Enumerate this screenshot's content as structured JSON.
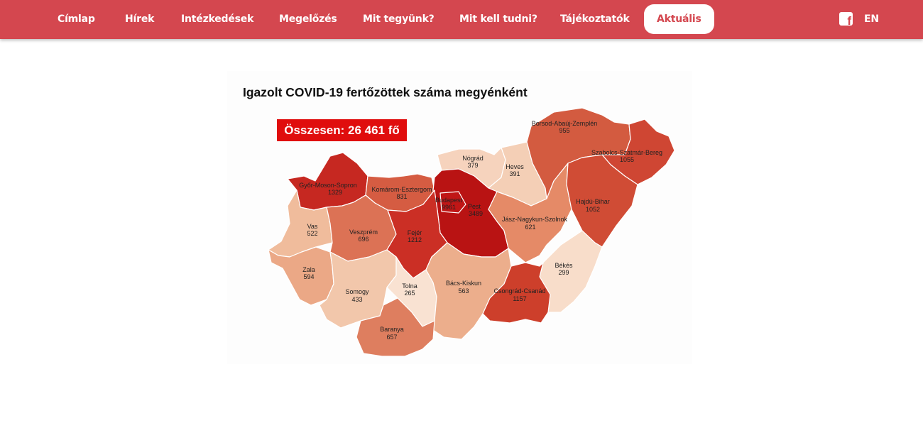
{
  "nav": {
    "items": [
      {
        "label": "Címlap"
      },
      {
        "label": "Hírek"
      },
      {
        "label": "Intézkedések"
      },
      {
        "label": "Megelőzés"
      },
      {
        "label": "Mit tegyünk?"
      },
      {
        "label": "Mit kell tudni?"
      },
      {
        "label": "Tájékoztatók"
      },
      {
        "label": "Aktuális",
        "active": true
      }
    ],
    "facebook_icon": "facebook-icon",
    "lang": "EN",
    "bar_color": "#d4474f"
  },
  "map": {
    "title": "Igazolt COVID-19 fertőzöttek száma megyénként",
    "total": "Összesen: 26 461 fő",
    "counties": [
      {
        "name": "Győr-Moson-Sopron",
        "value": "1329",
        "color": "#c62821"
      },
      {
        "name": "Komárom-Esztergom",
        "value": "831",
        "color": "#d55c42"
      },
      {
        "name": "Nógrád",
        "value": "379",
        "color": "#f6d3bd"
      },
      {
        "name": "Heves",
        "value": "391",
        "color": "#f4cfb6"
      },
      {
        "name": "Borsod-Abaúj-Zemplén",
        "value": "955",
        "color": "#d35b40"
      },
      {
        "name": "Szabolcs-Szatmár-Bereg",
        "value": "1055",
        "color": "#cf4633"
      },
      {
        "name": "Budapest",
        "value": "9961",
        "color": "#b91313"
      },
      {
        "name": "Pest",
        "value": "3489",
        "color": "#c01616"
      },
      {
        "name": "Vas",
        "value": "522",
        "color": "#f0bc9c"
      },
      {
        "name": "Veszprém",
        "value": "696",
        "color": "#dc7255"
      },
      {
        "name": "Fejér",
        "value": "1212",
        "color": "#cb2f25"
      },
      {
        "name": "Jász-Nagykun-Szolnok",
        "value": "621",
        "color": "#e58a67"
      },
      {
        "name": "Hajdú-Bihar",
        "value": "1052",
        "color": "#d04c35"
      },
      {
        "name": "Zala",
        "value": "594",
        "color": "#eba886"
      },
      {
        "name": "Somogy",
        "value": "433",
        "color": "#f2c7ab"
      },
      {
        "name": "Tolna",
        "value": "265",
        "color": "#f9e2d2"
      },
      {
        "name": "Bács-Kiskun",
        "value": "563",
        "color": "#ecae8c"
      },
      {
        "name": "Békés",
        "value": "299",
        "color": "#f8ddca"
      },
      {
        "name": "Csongrád-Csanád",
        "value": "1157",
        "color": "#cd3f2b"
      },
      {
        "name": "Baranya",
        "value": "657",
        "color": "#de7e5f"
      }
    ]
  }
}
